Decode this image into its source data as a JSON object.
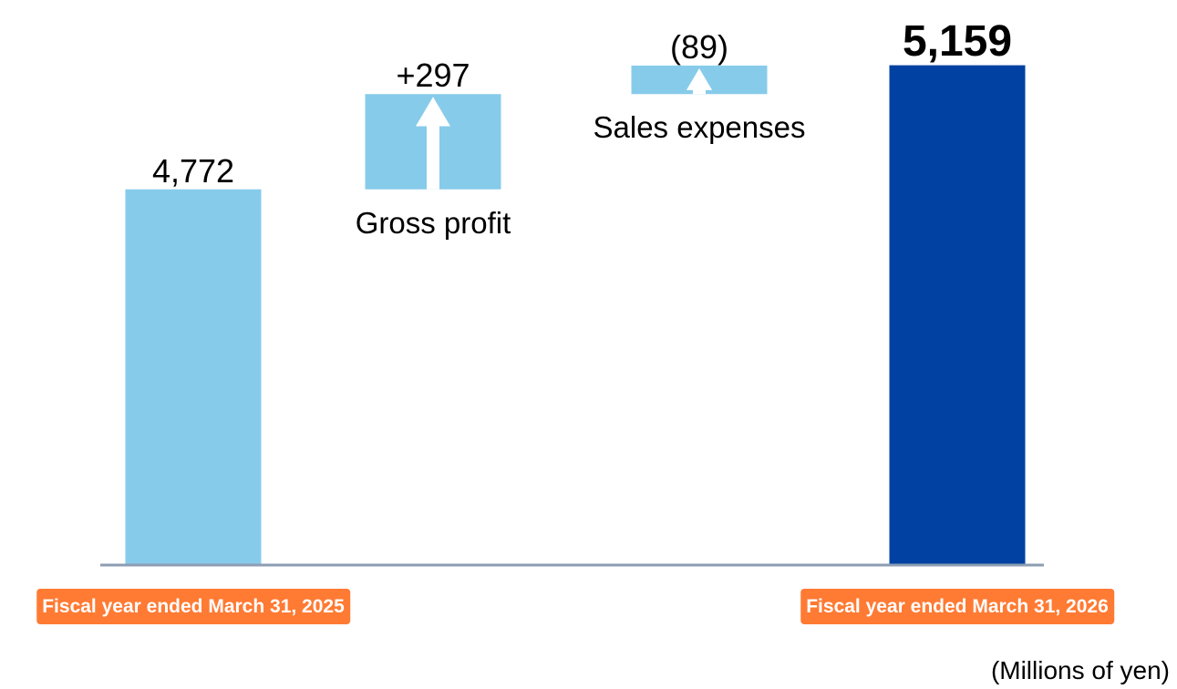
{
  "chart_data": {
    "type": "waterfall",
    "categories": [
      "Fiscal year ended March 31, 2025",
      "Gross profit",
      "Sales expenses",
      "Fiscal year ended March 31, 2026"
    ],
    "measure": [
      "absolute",
      "relative",
      "relative",
      "total"
    ],
    "values": [
      4772,
      297,
      89,
      5159
    ],
    "value_labels": [
      "4,772",
      "+297",
      "(89)",
      "5,159"
    ],
    "colors": [
      "#87cbea",
      "#87cbea",
      "#87cbea",
      "#0041a1"
    ],
    "ylim": [
      3600,
      5300
    ],
    "unit_note": "(Millions of yen)"
  }
}
